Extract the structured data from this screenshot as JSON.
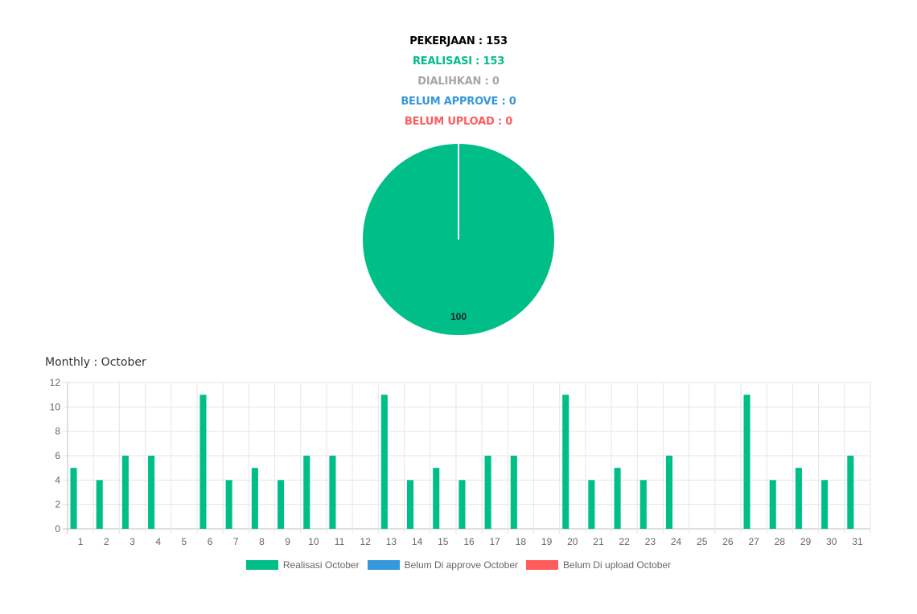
{
  "summary": {
    "pekerjaan": "PEKERJAAN : 153",
    "realisasi": "REALISASI : 153",
    "dialihkan": "DIALIHKAN : 0",
    "belum_approve": "BELUM APPROVE : 0",
    "belum_upload": "BELUM UPLOAD : 0"
  },
  "colors": {
    "black": "#000000",
    "green": "#00BE88",
    "gray": "#A6A6A6",
    "blue": "#3498DB",
    "red": "#FF5C5C"
  },
  "monthly_title": "Monthly : October",
  "chart_data": [
    {
      "type": "pie",
      "slices": [
        {
          "label": "Realisasi",
          "value": 100,
          "color": "#00BE88"
        },
        {
          "label": "Belum Di approve",
          "value": 0,
          "color": "#3498DB"
        },
        {
          "label": "Belum Di upload",
          "value": 0,
          "color": "#FF5C5C"
        }
      ],
      "data_labels": [
        "100"
      ]
    },
    {
      "type": "bar",
      "categories": [
        "1",
        "2",
        "3",
        "4",
        "5",
        "6",
        "7",
        "8",
        "9",
        "10",
        "11",
        "12",
        "13",
        "14",
        "15",
        "16",
        "17",
        "18",
        "19",
        "20",
        "21",
        "22",
        "23",
        "24",
        "25",
        "26",
        "27",
        "28",
        "29",
        "30",
        "31"
      ],
      "series": [
        {
          "name": "Realisasi October",
          "color": "#00BE88",
          "values": [
            5,
            4,
            6,
            6,
            0,
            11,
            4,
            5,
            4,
            6,
            6,
            0,
            11,
            4,
            5,
            4,
            6,
            6,
            0,
            11,
            4,
            5,
            4,
            6,
            0,
            0,
            11,
            4,
            5,
            4,
            6
          ]
        },
        {
          "name": "Belum Di approve October",
          "color": "#3498DB",
          "values": [
            0,
            0,
            0,
            0,
            0,
            0,
            0,
            0,
            0,
            0,
            0,
            0,
            0,
            0,
            0,
            0,
            0,
            0,
            0,
            0,
            0,
            0,
            0,
            0,
            0,
            0,
            0,
            0,
            0,
            0,
            0
          ]
        },
        {
          "name": "Belum Di upload October",
          "color": "#FF5C5C",
          "values": [
            0,
            0,
            0,
            0,
            0,
            0,
            0,
            0,
            0,
            0,
            0,
            0,
            0,
            0,
            0,
            0,
            0,
            0,
            0,
            0,
            0,
            0,
            0,
            0,
            0,
            0,
            0,
            0,
            0,
            0,
            0
          ]
        }
      ],
      "ylim": [
        0,
        12
      ],
      "yticks": [
        0,
        2,
        4,
        6,
        8,
        10,
        12
      ],
      "grid": true,
      "legend": "bottom"
    }
  ]
}
